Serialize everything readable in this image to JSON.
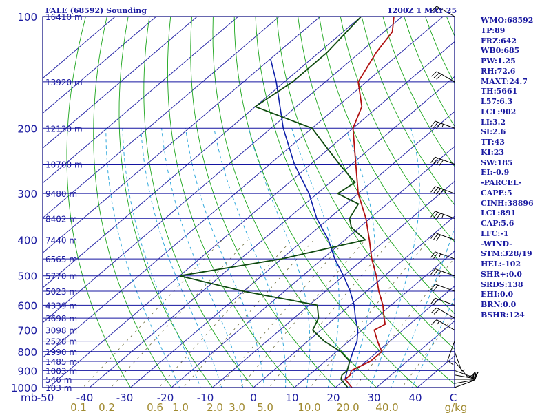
{
  "header": {
    "station_title": "FALE (68592) Sounding",
    "valid_time": "1200Z  1 MAY 25"
  },
  "side_panel": [
    "WMO:68592",
    "TP:89",
    "FRZ:642",
    "WB0:685",
    "PW:1.25",
    "RH:72.6",
    "MAXT:24.7",
    "TH:5661",
    "L57:6.3",
    "LCL:902",
    "LI:3.2",
    "SI:2.6",
    "TT:43",
    "KI:23",
    "SW:185",
    "EI:-0.9",
    "-PARCEL-",
    "CAPE:5",
    "CINH:38896",
    "LCL:891",
    "CAP:5.6",
    "LFC:-1",
    "-WIND-",
    "STM:328/19",
    "HEL:-102",
    "SHR+:0.0",
    "SRDS:138",
    "EHI:0.0",
    "BRN:0.0",
    "BSHR:124"
  ],
  "chart_data": {
    "type": "skew-t",
    "pressure_unit": "mb",
    "pressure_ticks": [
      1000,
      900,
      800,
      700,
      600,
      500,
      400,
      300,
      200,
      100
    ],
    "pressure_tick_labels": [
      "1000",
      "900",
      "800",
      "700",
      "600",
      "500",
      "400",
      "300",
      "200",
      "100"
    ],
    "height_levels": [
      {
        "p": 100,
        "label": "16410 m"
      },
      {
        "p": 150,
        "label": "13920 m"
      },
      {
        "p": 200,
        "label": "12130 m"
      },
      {
        "p": 250,
        "label": "10700 m"
      },
      {
        "p": 300,
        "label": "9480 m"
      },
      {
        "p": 350,
        "label": "8402 m"
      },
      {
        "p": 400,
        "label": "7440 m"
      },
      {
        "p": 450,
        "label": "6565 m"
      },
      {
        "p": 500,
        "label": "5770 m"
      },
      {
        "p": 550,
        "label": "5023 m"
      },
      {
        "p": 600,
        "label": "4339 m"
      },
      {
        "p": 650,
        "label": "3698 m"
      },
      {
        "p": 700,
        "label": "3098 m"
      },
      {
        "p": 750,
        "label": "2528 m"
      },
      {
        "p": 800,
        "label": "1990 m"
      },
      {
        "p": 850,
        "label": "1485 m"
      },
      {
        "p": 900,
        "label": "1003 m"
      },
      {
        "p": 950,
        "label": "546 m"
      },
      {
        "p": 1000,
        "label": "103 m"
      }
    ],
    "temp_axis_labels": [
      "-50",
      "-40",
      "-30",
      "-20",
      "-10",
      "0",
      "10",
      "20",
      "30",
      "40",
      "C"
    ],
    "temp_axis_values": [
      -50,
      -40,
      -30,
      -20,
      -10,
      0,
      10,
      20,
      30,
      40
    ],
    "mixing_ratio_labels": [
      "0.1",
      "0.2",
      "0.6",
      "1.0",
      "2.0",
      "3.0",
      "5.0",
      "10.0",
      "20.0",
      "40.0",
      "g/kg"
    ],
    "mixing_ratio_values": [
      0.1,
      0.2,
      0.6,
      1.0,
      2.0,
      3.0,
      5.0,
      10.0,
      20.0,
      40.0
    ],
    "temperature_profile": [
      [
        1000,
        24
      ],
      [
        975,
        22
      ],
      [
        950,
        20
      ],
      [
        925,
        20
      ],
      [
        900,
        19
      ],
      [
        850,
        21
      ],
      [
        800,
        21
      ],
      [
        775,
        19
      ],
      [
        750,
        17
      ],
      [
        700,
        13
      ],
      [
        675,
        14
      ],
      [
        650,
        12
      ],
      [
        600,
        8
      ],
      [
        550,
        3
      ],
      [
        500,
        -2
      ],
      [
        450,
        -8
      ],
      [
        400,
        -14
      ],
      [
        350,
        -21
      ],
      [
        300,
        -30
      ],
      [
        250,
        -39
      ],
      [
        200,
        -50
      ],
      [
        175,
        -54
      ],
      [
        150,
        -62
      ],
      [
        125,
        -66
      ],
      [
        110,
        -68
      ],
      [
        100,
        -72
      ]
    ],
    "dewpoint_profile": [
      [
        1000,
        23
      ],
      [
        975,
        21
      ],
      [
        950,
        19
      ],
      [
        925,
        18
      ],
      [
        900,
        18
      ],
      [
        850,
        16
      ],
      [
        800,
        11
      ],
      [
        750,
        4
      ],
      [
        700,
        -2
      ],
      [
        650,
        -4
      ],
      [
        600,
        -8
      ],
      [
        550,
        -30
      ],
      [
        500,
        -50
      ],
      [
        450,
        -30
      ],
      [
        400,
        -15
      ],
      [
        370,
        -22
      ],
      [
        350,
        -25
      ],
      [
        320,
        -27
      ],
      [
        300,
        -35
      ],
      [
        280,
        -34
      ],
      [
        250,
        -43
      ],
      [
        200,
        -60
      ],
      [
        175,
        -80
      ],
      [
        150,
        -78
      ],
      [
        125,
        -78
      ],
      [
        100,
        -80
      ]
    ],
    "parcel_profile": [
      [
        1000,
        24
      ],
      [
        950,
        20
      ],
      [
        900,
        18
      ],
      [
        850,
        16
      ],
      [
        800,
        14
      ],
      [
        750,
        12
      ],
      [
        700,
        9
      ],
      [
        650,
        5
      ],
      [
        600,
        1
      ],
      [
        550,
        -4
      ],
      [
        500,
        -10
      ],
      [
        450,
        -17
      ],
      [
        400,
        -24
      ],
      [
        350,
        -33
      ],
      [
        300,
        -42
      ],
      [
        250,
        -54
      ],
      [
        200,
        -67
      ],
      [
        150,
        -82
      ],
      [
        130,
        -90
      ]
    ],
    "wind_barbs": [
      {
        "p": 1000,
        "dir": 70,
        "spd": 10
      },
      {
        "p": 975,
        "dir": 80,
        "spd": 15
      },
      {
        "p": 950,
        "dir": 90,
        "spd": 20
      },
      {
        "p": 925,
        "dir": 100,
        "spd": 15
      },
      {
        "p": 900,
        "dir": 110,
        "spd": 10
      },
      {
        "p": 850,
        "dir": 140,
        "spd": 10
      },
      {
        "p": 800,
        "dir": 160,
        "spd": 5
      },
      {
        "p": 750,
        "dir": 200,
        "spd": 10
      },
      {
        "p": 700,
        "dir": 300,
        "spd": 15
      },
      {
        "p": 650,
        "dir": 300,
        "spd": 20
      },
      {
        "p": 600,
        "dir": 290,
        "spd": 20
      },
      {
        "p": 550,
        "dir": 290,
        "spd": 20
      },
      {
        "p": 500,
        "dir": 290,
        "spd": 25
      },
      {
        "p": 450,
        "dir": 290,
        "spd": 25
      },
      {
        "p": 400,
        "dir": 290,
        "spd": 30
      },
      {
        "p": 350,
        "dir": 290,
        "spd": 35
      },
      {
        "p": 300,
        "dir": 290,
        "spd": 45
      },
      {
        "p": 250,
        "dir": 290,
        "spd": 40
      },
      {
        "p": 200,
        "dir": 290,
        "spd": 35
      },
      {
        "p": 150,
        "dir": 300,
        "spd": 30
      },
      {
        "p": 100,
        "dir": 300,
        "spd": 20
      }
    ],
    "colors": {
      "border": "#00007a",
      "isobar": "#1414a0",
      "isotherm": "#2a2aa8",
      "dry_adiabat": "#1aa51a",
      "moist_adiabat": "#33aadd",
      "mixing_ratio": "#6a6a3a",
      "temperature": "#b01010",
      "dewpoint": "#0f4a0f",
      "parcel": "#0c1ea8",
      "text": "#1a1aa0",
      "mix_text": "#a08a30"
    }
  }
}
